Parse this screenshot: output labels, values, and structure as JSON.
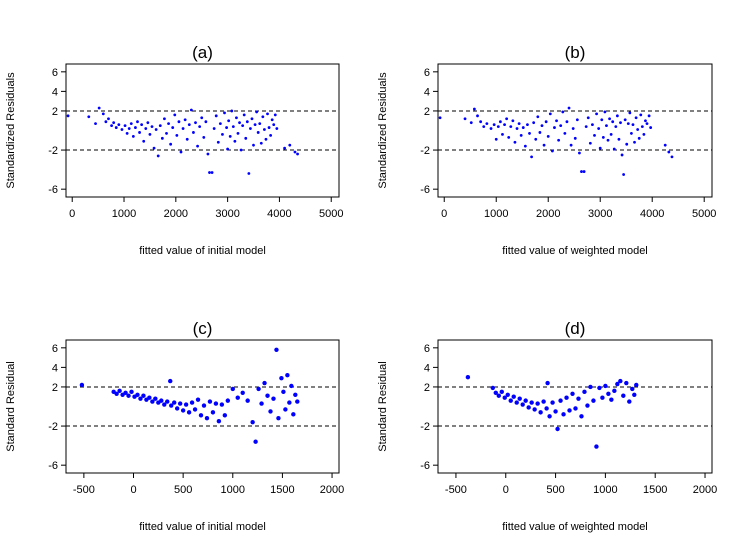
{
  "chart_data": [
    {
      "type": "scatter",
      "title": "(a)",
      "xlabel": "fitted value of initial model",
      "ylabel": "Standardized Residuals",
      "xlim": [
        -120,
        5150
      ],
      "ylim": [
        -6.8,
        6.8
      ],
      "xticks": [
        0,
        1000,
        2000,
        3000,
        4000,
        5000
      ],
      "yticks": [
        6,
        4,
        2,
        -2,
        -6
      ],
      "hlines": [
        2,
        -2
      ],
      "grid": false,
      "marker_size": 1.4,
      "point_color": "#0000ff",
      "points": [
        [
          -80,
          1.5
        ],
        [
          320,
          1.4
        ],
        [
          450,
          0.7
        ],
        [
          520,
          2.3
        ],
        [
          600,
          1.7
        ],
        [
          650,
          0.9
        ],
        [
          700,
          1.2
        ],
        [
          760,
          0.5
        ],
        [
          800,
          0.8
        ],
        [
          850,
          0.3
        ],
        [
          900,
          0.6
        ],
        [
          960,
          0.1
        ],
        [
          1020,
          0.5
        ],
        [
          1060,
          -0.3
        ],
        [
          1100,
          0.2
        ],
        [
          1140,
          0.7
        ],
        [
          1180,
          -0.6
        ],
        [
          1220,
          0.3
        ],
        [
          1260,
          0.9
        ],
        [
          1300,
          -0.2
        ],
        [
          1340,
          0.6
        ],
        [
          1380,
          -1.1
        ],
        [
          1420,
          0.2
        ],
        [
          1460,
          0.8
        ],
        [
          1500,
          -0.4
        ],
        [
          1540,
          0.4
        ],
        [
          1580,
          -1.8
        ],
        [
          1620,
          0.1
        ],
        [
          1660,
          -2.6
        ],
        [
          1700,
          0.5
        ],
        [
          1740,
          -0.8
        ],
        [
          1780,
          1.2
        ],
        [
          1820,
          -0.3
        ],
        [
          1860,
          0.7
        ],
        [
          1900,
          -1.4
        ],
        [
          1940,
          0.3
        ],
        [
          1980,
          1.6
        ],
        [
          2020,
          -0.5
        ],
        [
          2060,
          0.9
        ],
        [
          2100,
          -2.2
        ],
        [
          2140,
          0.2
        ],
        [
          2180,
          1.1
        ],
        [
          2220,
          -0.9
        ],
        [
          2260,
          0.6
        ],
        [
          2300,
          2.1
        ],
        [
          2340,
          -0.2
        ],
        [
          2380,
          0.8
        ],
        [
          2420,
          -1.6
        ],
        [
          2460,
          0.4
        ],
        [
          2500,
          1.3
        ],
        [
          2540,
          -0.7
        ],
        [
          2580,
          0.9
        ],
        [
          2620,
          -2.4
        ],
        [
          2650,
          -4.3
        ],
        [
          2700,
          -4.3
        ],
        [
          2740,
          0.2
        ],
        [
          2780,
          1.5
        ],
        [
          2820,
          -1.2
        ],
        [
          2860,
          0.7
        ],
        [
          2900,
          -0.4
        ],
        [
          2940,
          1.8
        ],
        [
          2980,
          0.3
        ],
        [
          3000,
          -1.9
        ],
        [
          3020,
          1.0
        ],
        [
          3050,
          -0.6
        ],
        [
          3080,
          2.0
        ],
        [
          3110,
          0.4
        ],
        [
          3140,
          -1.1
        ],
        [
          3170,
          1.3
        ],
        [
          3200,
          -0.3
        ],
        [
          3230,
          0.8
        ],
        [
          3260,
          -2.0
        ],
        [
          3290,
          0.5
        ],
        [
          3320,
          1.6
        ],
        [
          3350,
          -0.8
        ],
        [
          3380,
          0.9
        ],
        [
          3410,
          -4.4
        ],
        [
          3440,
          0.2
        ],
        [
          3470,
          1.2
        ],
        [
          3500,
          -1.5
        ],
        [
          3530,
          0.6
        ],
        [
          3560,
          1.9
        ],
        [
          3590,
          -0.2
        ],
        [
          3620,
          0.7
        ],
        [
          3650,
          -1.3
        ],
        [
          3680,
          1.4
        ],
        [
          3710,
          0.1
        ],
        [
          3740,
          -0.9
        ],
        [
          3770,
          1.7
        ],
        [
          3800,
          0.3
        ],
        [
          3830,
          -0.5
        ],
        [
          3860,
          1.1
        ],
        [
          3890,
          0.6
        ],
        [
          3920,
          1.6
        ],
        [
          3950,
          0.2
        ],
        [
          4100,
          -1.8
        ],
        [
          4200,
          -1.5
        ],
        [
          4300,
          -2.2
        ],
        [
          4350,
          -2.4
        ]
      ]
    },
    {
      "type": "scatter",
      "title": "(b)",
      "xlabel": "fitted value of weighted model",
      "ylabel": "Standardized Residuals",
      "xlim": [
        -120,
        5150
      ],
      "ylim": [
        -6.8,
        6.8
      ],
      "xticks": [
        0,
        1000,
        2000,
        3000,
        4000,
        5000
      ],
      "yticks": [
        6,
        4,
        2,
        -2,
        -6
      ],
      "hlines": [
        2,
        -2
      ],
      "grid": false,
      "marker_size": 1.4,
      "point_color": "#0000ff",
      "points": [
        [
          -80,
          1.3
        ],
        [
          400,
          1.2
        ],
        [
          520,
          0.8
        ],
        [
          580,
          2.2
        ],
        [
          640,
          1.5
        ],
        [
          700,
          0.9
        ],
        [
          760,
          0.4
        ],
        [
          820,
          0.7
        ],
        [
          900,
          0.2
        ],
        [
          960,
          0.6
        ],
        [
          1000,
          -0.9
        ],
        [
          1040,
          0.4
        ],
        [
          1080,
          0.9
        ],
        [
          1120,
          -0.4
        ],
        [
          1160,
          0.6
        ],
        [
          1200,
          1.2
        ],
        [
          1240,
          -0.7
        ],
        [
          1280,
          0.4
        ],
        [
          1320,
          1.0
        ],
        [
          1360,
          -1.2
        ],
        [
          1400,
          0.2
        ],
        [
          1440,
          0.7
        ],
        [
          1480,
          -0.5
        ],
        [
          1520,
          0.3
        ],
        [
          1560,
          -1.6
        ],
        [
          1600,
          0.6
        ],
        [
          1640,
          -0.3
        ],
        [
          1680,
          -2.7
        ],
        [
          1720,
          0.8
        ],
        [
          1760,
          -0.9
        ],
        [
          1800,
          1.4
        ],
        [
          1840,
          -0.2
        ],
        [
          1880,
          0.5
        ],
        [
          1920,
          -1.5
        ],
        [
          1960,
          0.9
        ],
        [
          2000,
          -0.6
        ],
        [
          2040,
          1.7
        ],
        [
          2080,
          -2.1
        ],
        [
          2120,
          0.3
        ],
        [
          2160,
          1.0
        ],
        [
          2200,
          -1.0
        ],
        [
          2240,
          0.5
        ],
        [
          2280,
          1.9
        ],
        [
          2320,
          -0.3
        ],
        [
          2360,
          0.9
        ],
        [
          2400,
          2.3
        ],
        [
          2440,
          -1.5
        ],
        [
          2480,
          0.2
        ],
        [
          2520,
          -0.8
        ],
        [
          2560,
          1.1
        ],
        [
          2600,
          -2.3
        ],
        [
          2640,
          -4.2
        ],
        [
          2690,
          -4.2
        ],
        [
          2730,
          0.4
        ],
        [
          2770,
          1.3
        ],
        [
          2810,
          -1.3
        ],
        [
          2850,
          0.6
        ],
        [
          2890,
          -0.5
        ],
        [
          2930,
          1.7
        ],
        [
          2970,
          0.2
        ],
        [
          3000,
          -1.8
        ],
        [
          3030,
          1.1
        ],
        [
          3060,
          -0.7
        ],
        [
          3090,
          1.9
        ],
        [
          3120,
          0.5
        ],
        [
          3150,
          -1.0
        ],
        [
          3180,
          1.2
        ],
        [
          3210,
          -0.4
        ],
        [
          3240,
          0.9
        ],
        [
          3270,
          -1.9
        ],
        [
          3300,
          0.4
        ],
        [
          3330,
          1.5
        ],
        [
          3360,
          -0.9
        ],
        [
          3390,
          0.8
        ],
        [
          3420,
          -2.5
        ],
        [
          3450,
          -4.5
        ],
        [
          3480,
          1.1
        ],
        [
          3510,
          -1.4
        ],
        [
          3540,
          0.7
        ],
        [
          3570,
          1.8
        ],
        [
          3600,
          -0.3
        ],
        [
          3630,
          0.6
        ],
        [
          3660,
          -1.2
        ],
        [
          3690,
          1.3
        ],
        [
          3720,
          0.1
        ],
        [
          3750,
          -0.8
        ],
        [
          3780,
          1.6
        ],
        [
          3810,
          0.4
        ],
        [
          3840,
          -0.4
        ],
        [
          3870,
          1.0
        ],
        [
          3900,
          0.7
        ],
        [
          3940,
          1.5
        ],
        [
          3970,
          0.3
        ],
        [
          4250,
          -1.5
        ],
        [
          4320,
          -2.2
        ],
        [
          4380,
          -2.7
        ]
      ]
    },
    {
      "type": "scatter",
      "title": "(c)",
      "xlabel": "fitted value  of initial model",
      "ylabel": "Standard Residual",
      "xlim": [
        -680,
        2070
      ],
      "ylim": [
        -6.8,
        6.8
      ],
      "xticks": [
        -500,
        0,
        500,
        1000,
        1500,
        2000
      ],
      "yticks": [
        6,
        4,
        2,
        -2,
        -6
      ],
      "hlines": [
        2,
        -2
      ],
      "grid": false,
      "marker_size": 2.2,
      "point_color": "#0000ff",
      "points": [
        [
          -520,
          2.2
        ],
        [
          -200,
          1.5
        ],
        [
          -170,
          1.3
        ],
        [
          -140,
          1.6
        ],
        [
          -110,
          1.2
        ],
        [
          -80,
          1.4
        ],
        [
          -50,
          1.1
        ],
        [
          -20,
          1.5
        ],
        [
          10,
          1.0
        ],
        [
          40,
          1.2
        ],
        [
          70,
          0.8
        ],
        [
          100,
          1.1
        ],
        [
          130,
          0.7
        ],
        [
          160,
          0.9
        ],
        [
          190,
          0.5
        ],
        [
          220,
          0.8
        ],
        [
          250,
          0.4
        ],
        [
          280,
          0.6
        ],
        [
          310,
          0.2
        ],
        [
          340,
          0.5
        ],
        [
          370,
          2.6
        ],
        [
          380,
          0.1
        ],
        [
          410,
          0.4
        ],
        [
          440,
          -0.2
        ],
        [
          470,
          0.3
        ],
        [
          500,
          -0.4
        ],
        [
          530,
          0.2
        ],
        [
          560,
          -0.6
        ],
        [
          590,
          0.4
        ],
        [
          620,
          -0.3
        ],
        [
          650,
          0.7
        ],
        [
          680,
          -0.9
        ],
        [
          710,
          0.1
        ],
        [
          740,
          -1.2
        ],
        [
          770,
          0.5
        ],
        [
          800,
          -0.6
        ],
        [
          830,
          0.3
        ],
        [
          860,
          -1.5
        ],
        [
          890,
          0.2
        ],
        [
          920,
          -0.9
        ],
        [
          950,
          0.6
        ],
        [
          1000,
          1.8
        ],
        [
          1050,
          0.9
        ],
        [
          1100,
          1.4
        ],
        [
          1150,
          0.6
        ],
        [
          1200,
          -1.6
        ],
        [
          1230,
          -3.6
        ],
        [
          1260,
          1.8
        ],
        [
          1290,
          0.3
        ],
        [
          1320,
          2.4
        ],
        [
          1350,
          1.1
        ],
        [
          1380,
          -0.5
        ],
        [
          1410,
          0.8
        ],
        [
          1440,
          5.8
        ],
        [
          1460,
          -1.2
        ],
        [
          1490,
          2.9
        ],
        [
          1510,
          1.5
        ],
        [
          1530,
          -0.3
        ],
        [
          1550,
          3.2
        ],
        [
          1570,
          0.4
        ],
        [
          1590,
          2.1
        ],
        [
          1610,
          -0.8
        ],
        [
          1630,
          1.2
        ],
        [
          1650,
          0.5
        ]
      ]
    },
    {
      "type": "scatter",
      "title": "(d)",
      "xlabel": "fitted value of weighted model",
      "ylabel": "Standard Residual",
      "xlim": [
        -680,
        2070
      ],
      "ylim": [
        -6.8,
        6.8
      ],
      "xticks": [
        -500,
        0,
        500,
        1000,
        1500,
        2000
      ],
      "yticks": [
        6,
        4,
        2,
        -2,
        -6
      ],
      "hlines": [
        2,
        -2
      ],
      "grid": false,
      "marker_size": 2.2,
      "point_color": "#0000ff",
      "points": [
        [
          -380,
          3.0
        ],
        [
          -130,
          1.9
        ],
        [
          -100,
          1.4
        ],
        [
          -70,
          1.1
        ],
        [
          -40,
          1.5
        ],
        [
          -10,
          0.9
        ],
        [
          20,
          1.2
        ],
        [
          50,
          0.6
        ],
        [
          80,
          1.0
        ],
        [
          110,
          0.4
        ],
        [
          140,
          0.8
        ],
        [
          170,
          0.2
        ],
        [
          200,
          0.6
        ],
        [
          230,
          -0.1
        ],
        [
          260,
          0.4
        ],
        [
          290,
          -0.3
        ],
        [
          320,
          0.3
        ],
        [
          350,
          -0.6
        ],
        [
          380,
          0.5
        ],
        [
          410,
          -0.2
        ],
        [
          420,
          2.4
        ],
        [
          440,
          -1.0
        ],
        [
          470,
          0.4
        ],
        [
          500,
          -0.5
        ],
        [
          520,
          -2.3
        ],
        [
          550,
          0.6
        ],
        [
          580,
          -0.8
        ],
        [
          610,
          0.9
        ],
        [
          640,
          -0.4
        ],
        [
          670,
          1.3
        ],
        [
          700,
          -0.2
        ],
        [
          730,
          0.8
        ],
        [
          760,
          -1.0
        ],
        [
          790,
          1.5
        ],
        [
          820,
          0.1
        ],
        [
          850,
          2.0
        ],
        [
          880,
          0.6
        ],
        [
          910,
          -4.1
        ],
        [
          940,
          1.9
        ],
        [
          970,
          0.9
        ],
        [
          1000,
          2.1
        ],
        [
          1030,
          1.3
        ],
        [
          1060,
          0.7
        ],
        [
          1090,
          1.6
        ],
        [
          1120,
          2.3
        ],
        [
          1150,
          2.6
        ],
        [
          1180,
          1.1
        ],
        [
          1210,
          2.4
        ],
        [
          1240,
          0.5
        ],
        [
          1270,
          1.8
        ],
        [
          1290,
          1.2
        ],
        [
          1310,
          2.2
        ]
      ]
    }
  ]
}
